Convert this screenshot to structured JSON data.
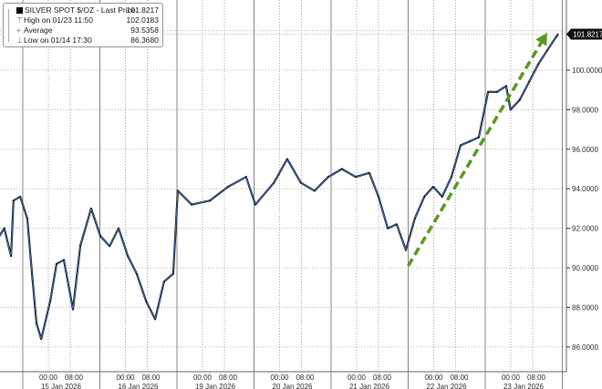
{
  "chart_data": {
    "type": "line",
    "title": "",
    "xlabel": "",
    "ylabel": "",
    "ylim": [
      85,
      104
    ],
    "y_ticks": [
      "86.0000",
      "88.0000",
      "90.0000",
      "92.0000",
      "94.0000",
      "96.0000",
      "98.0000",
      "100.0000"
    ],
    "y_tick_values": [
      86,
      88,
      90,
      92,
      94,
      96,
      98,
      100
    ],
    "x_tick_time_labels": [
      "00:00",
      "08:00"
    ],
    "x_day_labels": [
      "15 Jan 2026",
      "16 Jan 2026",
      "19 Jan 2026",
      "20 Jan 2026",
      "21 Jan 2026",
      "22 Jan 2026",
      "23 Jan 2026"
    ],
    "trading_dates": [
      "2026-01-14",
      "2026-01-15",
      "2026-01-16",
      "2026-01-19",
      "2026-01-20",
      "2026-01-21",
      "2026-01-22",
      "2026-01-23"
    ],
    "grid": true,
    "legend_placement": "top-left",
    "line_color": "#1a1a1a",
    "highlight_color": "#3a78c8",
    "last_price_label": "101.8217",
    "last_price": 101.8217,
    "legend": [
      {
        "icon": "square-icon",
        "label": "SILVER SPOT $/OZ - Last Price",
        "value": "101.8217"
      },
      {
        "icon": "high-marker-icon",
        "label": "High on 01/23 11:50",
        "value": "102.0183"
      },
      {
        "icon": "average-marker-icon",
        "label": "Average",
        "value": "93.5358"
      },
      {
        "icon": "low-marker-icon",
        "label": "Low on 01/14 17:30",
        "value": "86.3680"
      }
    ],
    "series": [
      {
        "points": [
          [
            "2026-01-14T09:00",
            91.6
          ],
          [
            "2026-01-14T10:30",
            92.0
          ],
          [
            "2026-01-14T12:30",
            90.6
          ],
          [
            "2026-01-14T13:15",
            93.4
          ],
          [
            "2026-01-14T15:15",
            93.6
          ],
          [
            "2026-01-14T18:20",
            92.5
          ],
          [
            "2026-01-14T19:45",
            89.7
          ],
          [
            "2026-01-14T21:05",
            87.2
          ],
          [
            "2026-01-14T22:30",
            86.4
          ],
          [
            "2026-01-15T01:10",
            88.3
          ],
          [
            "2026-01-15T03:05",
            90.2
          ],
          [
            "2026-01-15T05:15",
            90.4
          ],
          [
            "2026-01-15T08:00",
            87.9
          ],
          [
            "2026-01-15T10:10",
            91.1
          ],
          [
            "2026-01-15T13:25",
            93.0
          ],
          [
            "2026-01-15T17:10",
            91.6
          ],
          [
            "2026-01-15T19:55",
            91.1
          ],
          [
            "2026-01-15T22:35",
            92.0
          ],
          [
            "2026-01-16T01:20",
            90.6
          ],
          [
            "2026-01-16T04:00",
            89.7
          ],
          [
            "2026-01-16T06:50",
            88.3
          ],
          [
            "2026-01-16T09:30",
            87.4
          ],
          [
            "2026-01-16T12:10",
            89.3
          ],
          [
            "2026-01-16T14:55",
            89.7
          ],
          [
            "2026-01-18T17:15",
            93.9
          ],
          [
            "2026-01-18T21:25",
            93.2
          ],
          [
            "2026-01-19T02:50",
            93.4
          ],
          [
            "2026-01-19T08:15",
            94.1
          ],
          [
            "2026-01-19T13:40",
            94.6
          ],
          [
            "2026-01-19T17:25",
            93.2
          ],
          [
            "2026-01-19T22:55",
            94.3
          ],
          [
            "2026-01-20T02:55",
            95.5
          ],
          [
            "2026-01-20T07:00",
            94.3
          ],
          [
            "2026-01-20T11:05",
            93.9
          ],
          [
            "2026-01-20T15:10",
            94.6
          ],
          [
            "2026-01-20T20:15",
            95.0
          ],
          [
            "2026-01-21T00:20",
            94.6
          ],
          [
            "2026-01-21T04:25",
            94.8
          ],
          [
            "2026-01-21T07:10",
            93.6
          ],
          [
            "2026-01-21T09:55",
            92.0
          ],
          [
            "2026-01-21T12:35",
            92.2
          ],
          [
            "2026-01-21T15:20",
            90.9
          ],
          [
            "2026-01-21T19:00",
            92.5
          ],
          [
            "2026-01-21T21:50",
            93.6
          ],
          [
            "2026-01-22T00:30",
            94.1
          ],
          [
            "2026-01-22T03:10",
            93.6
          ],
          [
            "2026-01-22T05:55",
            94.6
          ],
          [
            "2026-01-22T08:40",
            96.2
          ],
          [
            "2026-01-22T11:25",
            96.4
          ],
          [
            "2026-01-22T14:05",
            96.6
          ],
          [
            "2026-01-22T17:50",
            98.9
          ],
          [
            "2026-01-22T20:30",
            98.9
          ],
          [
            "2026-01-22T23:15",
            99.2
          ],
          [
            "2026-01-23T00:35",
            98.0
          ],
          [
            "2026-01-23T03:20",
            98.5
          ],
          [
            "2026-01-23T06:05",
            99.4
          ],
          [
            "2026-01-23T08:50",
            100.3
          ],
          [
            "2026-01-23T11:30",
            101.0
          ],
          [
            "2026-01-23T14:15",
            101.7
          ],
          [
            "2026-01-23T14:50",
            101.8217
          ]
        ]
      }
    ],
    "annotations": [
      {
        "type": "dashed-arrow",
        "color": "#5a9a1e",
        "from": [
          "2026-01-21T17:00",
          90.1
        ],
        "to": [
          "2026-01-23T11:30",
          101.9
        ]
      }
    ]
  }
}
